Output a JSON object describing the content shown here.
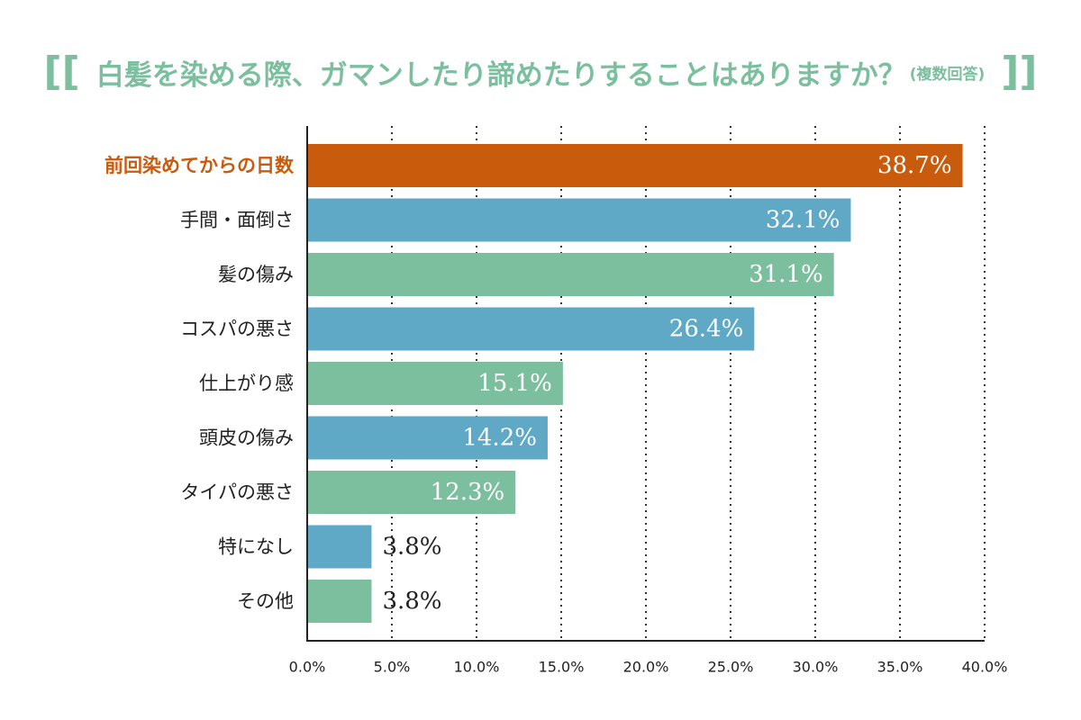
{
  "title": {
    "left_bracket": "[[",
    "main": "白髪を染める際、ガマンしたり諦めたりすることはありますか？",
    "sub": "(複数回答)",
    "right_bracket": "]]"
  },
  "chart_data": {
    "type": "bar",
    "orientation": "horizontal",
    "title": "白髪を染める際、ガマンしたり諦めたりすることはありますか？(複数回答)",
    "categories": [
      "前回染めてからの日数",
      "手間・面倒さ",
      "髪の傷み",
      "コスパの悪さ",
      "仕上がり感",
      "頭皮の傷み",
      "タイパの悪さ",
      "特になし",
      "その他"
    ],
    "values": [
      38.7,
      32.1,
      31.1,
      26.4,
      15.1,
      14.2,
      12.3,
      3.8,
      3.8
    ],
    "value_labels": [
      "38.7%",
      "32.1%",
      "31.1%",
      "26.4%",
      "15.1%",
      "14.2%",
      "12.3%",
      "3.8%",
      "3.8%"
    ],
    "bar_colors": [
      "#c95b0c",
      "#5fa9c6",
      "#7bbf9f",
      "#5fa9c6",
      "#7bbf9f",
      "#5fa9c6",
      "#7bbf9f",
      "#5fa9c6",
      "#7bbf9f"
    ],
    "highlight_label_color": "#c95b0c",
    "xlim": [
      0,
      40
    ],
    "x_ticks": [
      0,
      5,
      10,
      15,
      20,
      25,
      30,
      35,
      40
    ],
    "x_tick_labels": [
      "0.0%",
      "5.0%",
      "10.0%",
      "15.0%",
      "20.0%",
      "25.0%",
      "30.0%",
      "35.0%",
      "40.0%"
    ],
    "grid": "vertical dotted",
    "xlabel": "",
    "ylabel": ""
  }
}
